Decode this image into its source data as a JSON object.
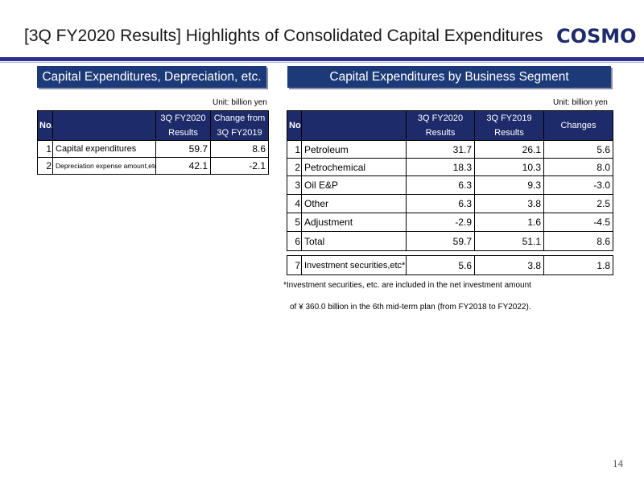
{
  "page": {
    "title": "[3Q FY2020 Results] Highlights of Consolidated Capital Expenditures",
    "logo": "COSMO",
    "page_number": "14",
    "brand_color": "#2e3192",
    "header_color": "#1d3a78"
  },
  "left": {
    "heading": "Capital Expenditures, Depreciation, etc.",
    "unit": "Unit: billion yen",
    "headers": {
      "no": "No.",
      "col1_l1": "3Q FY2020",
      "col1_l2": "Results",
      "col2_l1": "Change from",
      "col2_l2": "3Q FY2019"
    },
    "rows": [
      {
        "no": "1",
        "label": "Capital expenditures",
        "results": "59.7",
        "change": "8.6"
      },
      {
        "no": "2",
        "label": "Depreciation expense amount,etc",
        "results": "42.1",
        "change": "-2.1"
      }
    ]
  },
  "right": {
    "heading": "Capital Expenditures by Business Segment",
    "unit": "Unit: billion yen",
    "headers": {
      "no": "No.",
      "col1_l1": "3Q FY2020",
      "col1_l2": "Results",
      "col2_l1": "3Q FY2019",
      "col2_l2": "Results",
      "col3": "Changes"
    },
    "rows": [
      {
        "no": "1",
        "label": "Petroleum",
        "fy2020": "31.7",
        "fy2019": "26.1",
        "change": "5.6"
      },
      {
        "no": "2",
        "label": "Petrochemical",
        "fy2020": "18.3",
        "fy2019": "10.3",
        "change": "8.0"
      },
      {
        "no": "3",
        "label": "Oil E&P",
        "fy2020": "6.3",
        "fy2019": "9.3",
        "change": "-3.0"
      },
      {
        "no": "4",
        "label": "Other",
        "fy2020": "6.3",
        "fy2019": "3.8",
        "change": "2.5"
      },
      {
        "no": "5",
        "label": "Adjustment",
        "fy2020": "-2.9",
        "fy2019": "1.6",
        "change": "-4.5"
      },
      {
        "no": "6",
        "label": "Total",
        "fy2020": "59.7",
        "fy2019": "51.1",
        "change": "8.6"
      }
    ],
    "investment_row": {
      "no": "7",
      "label": "Investment securities,etc*",
      "fy2020": "5.6",
      "fy2019": "3.8",
      "change": "1.8"
    },
    "note_line1": "*Investment securities, etc. are included in the net investment amount",
    "note_line2": "of ¥ 360.0 billion in the 6th mid-term plan (from FY2018 to FY2022)."
  }
}
